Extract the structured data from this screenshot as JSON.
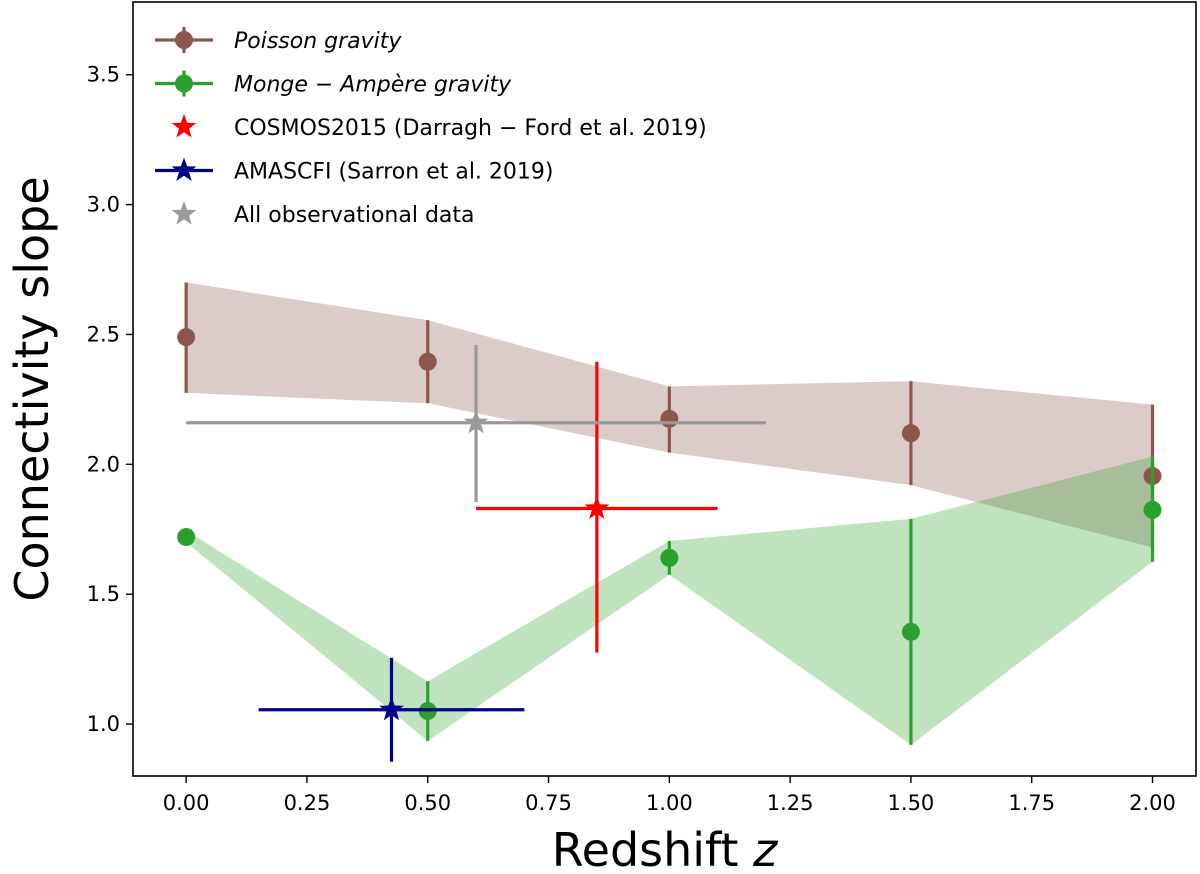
{
  "chart_data": {
    "type": "scatter",
    "title": "",
    "xlabel": "Redshift",
    "xlabel_symbol": "z",
    "ylabel": "Connectivity slope",
    "xlim": [
      -0.11,
      2.09
    ],
    "ylim": [
      0.8,
      3.78
    ],
    "x_ticks": [
      0.0,
      0.25,
      0.5,
      0.75,
      1.0,
      1.25,
      1.5,
      1.75,
      2.0
    ],
    "x_tick_labels": [
      "0.00",
      "0.25",
      "0.50",
      "0.75",
      "1.00",
      "1.25",
      "1.50",
      "1.75",
      "2.00"
    ],
    "y_ticks": [
      1.0,
      1.5,
      2.0,
      2.5,
      3.0,
      3.5
    ],
    "y_tick_labels": [
      "1.0",
      "1.5",
      "2.0",
      "2.5",
      "3.0",
      "3.5"
    ],
    "legend_position": "top-left",
    "series": [
      {
        "name": "Poisson gravity",
        "italic": true,
        "color": "#8c564b",
        "marker": "circle",
        "x": [
          0.0,
          0.5,
          1.0,
          1.5,
          2.0
        ],
        "y": [
          2.49,
          2.395,
          2.175,
          2.12,
          1.955
        ],
        "yerr_low": [
          2.275,
          2.235,
          2.045,
          1.92,
          1.68
        ],
        "yerr_high": [
          2.7,
          2.555,
          2.3,
          2.32,
          2.23
        ],
        "band": true
      },
      {
        "name": "Monge − Ampère gravity",
        "italic": true,
        "color": "#2ca02c",
        "marker": "circle",
        "x": [
          0.0,
          0.5,
          1.0,
          1.5,
          2.0
        ],
        "y": [
          1.72,
          1.05,
          1.64,
          1.355,
          1.825
        ],
        "yerr_low": [
          1.7,
          0.935,
          1.575,
          0.92,
          1.625
        ],
        "yerr_high": [
          1.745,
          1.165,
          1.705,
          1.79,
          2.03
        ],
        "band": true
      },
      {
        "name": "COSMOS2015 (Darragh − Ford et al. 2019)",
        "italic": false,
        "color": "#ff0000",
        "marker": "star",
        "x": [
          0.85
        ],
        "y": [
          1.83
        ],
        "xerr_low": [
          0.6
        ],
        "xerr_high": [
          1.1
        ],
        "yerr_low": [
          1.275
        ],
        "yerr_high": [
          2.395
        ],
        "band": false
      },
      {
        "name": "AMASCFI (Sarron et al. 2019)",
        "italic": false,
        "color": "#00008b",
        "marker": "star",
        "x": [
          0.425
        ],
        "y": [
          1.055
        ],
        "xerr_low": [
          0.15
        ],
        "xerr_high": [
          0.7
        ],
        "yerr_low": [
          0.855
        ],
        "yerr_high": [
          1.255
        ],
        "band": false
      },
      {
        "name": "All observational data",
        "italic": false,
        "color": "#999999",
        "marker": "star",
        "x": [
          0.6
        ],
        "y": [
          2.16
        ],
        "xerr_low": [
          0.0
        ],
        "xerr_high": [
          1.2
        ],
        "yerr_low": [
          1.855
        ],
        "yerr_high": [
          2.46
        ],
        "band": false
      }
    ]
  }
}
